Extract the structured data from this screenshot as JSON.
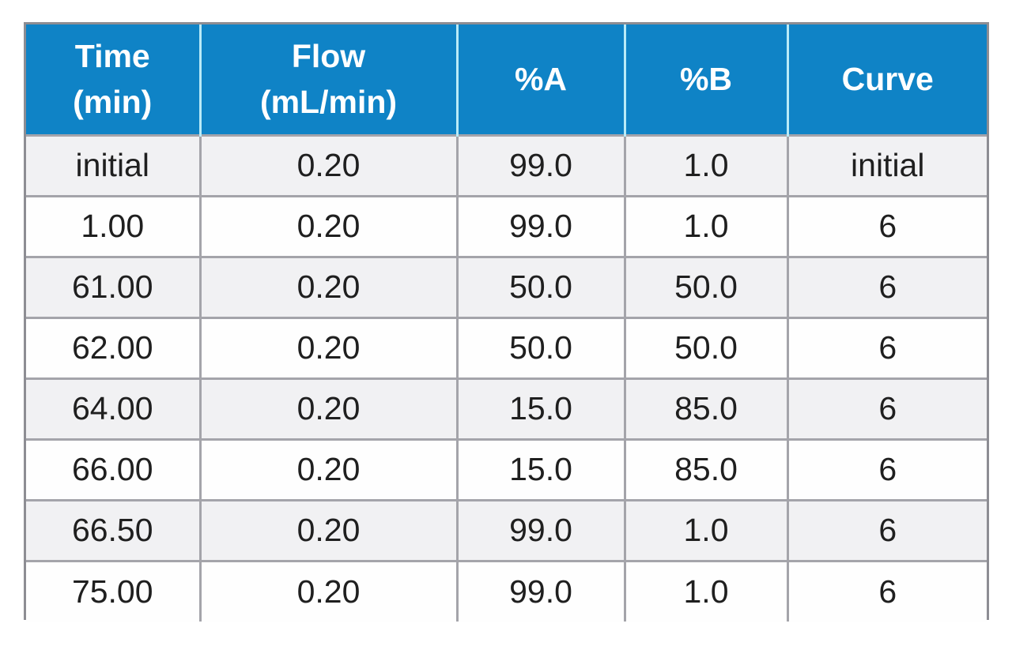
{
  "figure": {
    "kind": "lc-gradient-method-table",
    "colors": {
      "header_bg": "#0f83c6",
      "header_text": "#ffffff",
      "header_divider": "#b9eaf7",
      "row_stripe_bg": "#f1f1f3",
      "row_plain_bg": "#fefefe",
      "grid_border": "#a4a4aa",
      "outer_border": "#8d8d93",
      "body_text": "#1f1f1f"
    }
  },
  "chart_data": {
    "type": "table",
    "columns": [
      "Time\n(min)",
      "Flow\n(mL/min)",
      "%A",
      "%B",
      "Curve"
    ],
    "rows": [
      [
        "initial",
        "0.20",
        "99.0",
        "1.0",
        "initial"
      ],
      [
        "1.00",
        "0.20",
        "99.0",
        "1.0",
        "6"
      ],
      [
        "61.00",
        "0.20",
        "50.0",
        "50.0",
        "6"
      ],
      [
        "62.00",
        "0.20",
        "50.0",
        "50.0",
        "6"
      ],
      [
        "64.00",
        "0.20",
        "15.0",
        "85.0",
        "6"
      ],
      [
        "66.00",
        "0.20",
        "15.0",
        "85.0",
        "6"
      ],
      [
        "66.50",
        "0.20",
        "99.0",
        "1.0",
        "6"
      ],
      [
        "75.00",
        "0.20",
        "99.0",
        "1.0",
        "6"
      ]
    ]
  }
}
